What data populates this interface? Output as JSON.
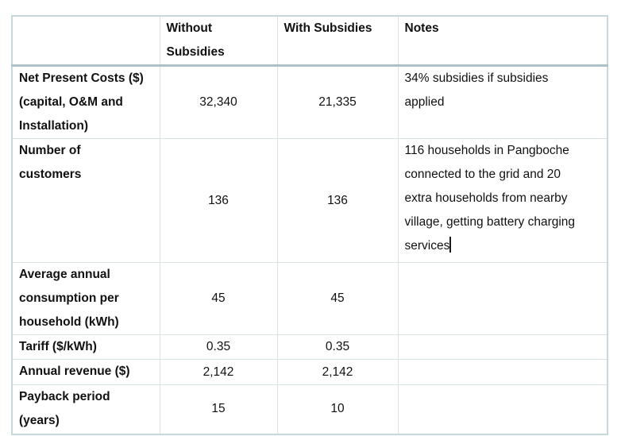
{
  "table": {
    "headers": [
      "",
      "Without\nSubsidies",
      "With Subsidies",
      "Notes"
    ],
    "rows": [
      {
        "label": "Net Present Costs ($)\n(capital, O&M and\nInstallation)",
        "without_subsidies": "32,340",
        "with_subsidies": "21,335",
        "notes": "34% subsidies if subsidies\napplied"
      },
      {
        "label": "Number of\ncustomers",
        "without_subsidies": "136",
        "with_subsidies": "136",
        "notes": "116 households in Pangboche\nconnected to the grid and 20\nextra households from nearby\nvillage, getting battery charging\nservices",
        "text_cursor_after_notes": true
      },
      {
        "label": "Average annual\nconsumption per\nhousehold (kWh)",
        "without_subsidies": "45",
        "with_subsidies": "45",
        "notes": ""
      },
      {
        "label": "Tariff ($/kWh)",
        "without_subsidies": "0.35",
        "with_subsidies": "0.35",
        "notes": ""
      },
      {
        "label": "Annual revenue ($)",
        "without_subsidies": "2,142",
        "with_subsidies": "2,142",
        "notes": ""
      },
      {
        "label": "Payback period\n(years)",
        "without_subsidies": "15",
        "with_subsidies": "10",
        "notes": ""
      }
    ],
    "colors": {
      "inner_border": "#d8e2e2",
      "outer_border": "#c6d8da",
      "header_separator": "#a9c3c9",
      "text": "#111111",
      "background": "#ffffff"
    }
  }
}
